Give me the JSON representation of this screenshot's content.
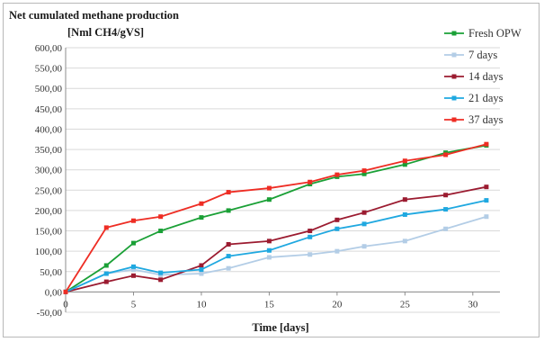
{
  "chart_data": {
    "type": "line",
    "title_line1": "Net cumulated methane production",
    "title_line2": "[Nml CH4/gVS]",
    "xlabel": "Time [days]",
    "ylabel": "",
    "xlim": [
      0,
      32
    ],
    "ylim": [
      -50,
      600
    ],
    "x_ticks": [
      0,
      5,
      10,
      15,
      20,
      25,
      30
    ],
    "y_ticks": [
      "-50,00",
      "0,00",
      "50,00",
      "100,00",
      "150,00",
      "200,00",
      "250,00",
      "300,00",
      "350,00",
      "400,00",
      "450,00",
      "500,00",
      "550,00",
      "600,00"
    ],
    "y_tick_values": [
      -50,
      0,
      50,
      100,
      150,
      200,
      250,
      300,
      350,
      400,
      450,
      500,
      550,
      600
    ],
    "grid": "horizontal",
    "legend_position": "top-right",
    "series": [
      {
        "name": "Fresh OPW",
        "color": "#1aa036",
        "x": [
          0,
          3,
          5,
          7,
          10,
          12,
          15,
          18,
          20,
          22,
          25,
          28,
          31
        ],
        "y": [
          0,
          65,
          120,
          150,
          183,
          200,
          227,
          265,
          283,
          290,
          313,
          342,
          360
        ]
      },
      {
        "name": "7 days",
        "color": "#b3cde6",
        "x": [
          0,
          3,
          5,
          7,
          10,
          12,
          15,
          18,
          20,
          22,
          25,
          28,
          31
        ],
        "y": [
          0,
          45,
          55,
          42,
          45,
          58,
          85,
          92,
          100,
          112,
          125,
          155,
          185
        ]
      },
      {
        "name": "14 days",
        "color": "#9b1b30",
        "x": [
          0,
          3,
          5,
          7,
          10,
          12,
          15,
          18,
          20,
          22,
          25,
          28,
          31
        ],
        "y": [
          0,
          25,
          40,
          30,
          65,
          117,
          125,
          150,
          177,
          195,
          227,
          238,
          258
        ]
      },
      {
        "name": "21 days",
        "color": "#1fa8e0",
        "x": [
          0,
          3,
          5,
          7,
          10,
          12,
          15,
          18,
          20,
          22,
          25,
          28,
          31
        ],
        "y": [
          0,
          45,
          62,
          47,
          55,
          88,
          102,
          135,
          155,
          167,
          190,
          203,
          225
        ]
      },
      {
        "name": "37 days",
        "color": "#ee2d24",
        "x": [
          0,
          3,
          5,
          7,
          10,
          12,
          15,
          18,
          20,
          22,
          25,
          28,
          31
        ],
        "y": [
          0,
          158,
          175,
          185,
          217,
          245,
          255,
          270,
          288,
          298,
          322,
          337,
          363
        ]
      }
    ]
  }
}
